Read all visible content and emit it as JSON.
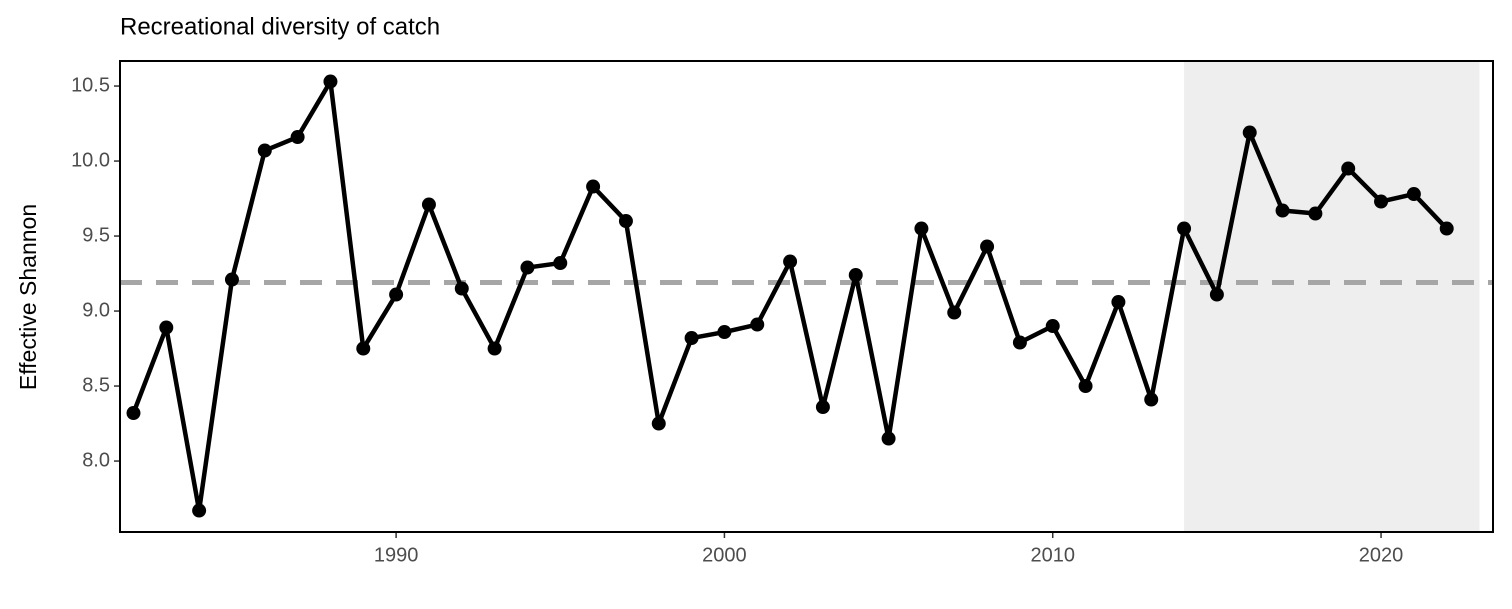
{
  "chart_data": {
    "type": "line",
    "title": "Recreational diversity of catch",
    "y_label": "Effective Shannon",
    "x": [
      1982,
      1983,
      1984,
      1985,
      1986,
      1987,
      1988,
      1989,
      1990,
      1991,
      1992,
      1993,
      1994,
      1995,
      1996,
      1997,
      1998,
      1999,
      2000,
      2001,
      2002,
      2003,
      2004,
      2005,
      2006,
      2007,
      2008,
      2009,
      2010,
      2011,
      2012,
      2013,
      2014,
      2015,
      2016,
      2017,
      2018,
      2019,
      2020,
      2021,
      2022
    ],
    "series": [
      {
        "color": "#000000",
        "values": [
          8.32,
          8.89,
          7.67,
          9.21,
          10.07,
          10.16,
          10.53,
          8.75,
          9.11,
          9.71,
          9.15,
          8.75,
          9.29,
          9.32,
          9.83,
          9.6,
          8.25,
          8.82,
          8.86,
          8.91,
          9.33,
          8.36,
          9.24,
          8.15,
          9.55,
          8.99,
          9.43,
          8.79,
          8.9,
          8.5,
          9.06,
          8.41,
          9.55,
          9.11,
          10.19,
          9.67,
          9.65,
          9.95,
          9.73,
          9.78,
          9.55
        ]
      }
    ],
    "xlim": [
      1981.59,
      2023.41
    ],
    "xticks": [
      1990,
      2000,
      2010,
      2020
    ],
    "ylim": [
      7.527,
      10.667
    ],
    "yticks": [
      {
        "value": 8.0,
        "label": "8.0"
      },
      8.5,
      {
        "value": 9.0,
        "label": "9.0"
      },
      9.5,
      {
        "value": 10.0,
        "label": "10.0"
      },
      10.5
    ],
    "highlight_x": [
      2014,
      2023
    ],
    "highlight_color": "#eeeeee",
    "reference_y": 9.19,
    "reference_color": "#a6a6a6"
  }
}
